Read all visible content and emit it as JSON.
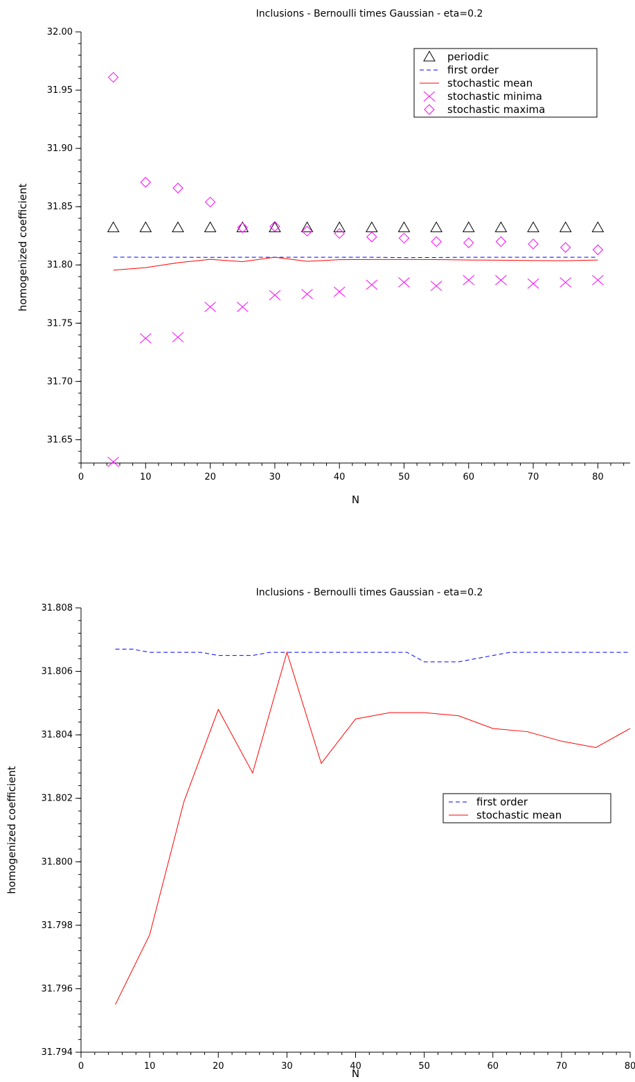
{
  "chart_data": [
    {
      "type": "line",
      "title": "Inclusions - Bernoulli times Gaussian - eta=0.2",
      "xlabel": "N",
      "ylabel": "homogenized coefficient",
      "xlim": [
        0,
        85
      ],
      "ylim": [
        31.63,
        32.0
      ],
      "xticks": [
        "0",
        "10",
        "20",
        "30",
        "40",
        "50",
        "60",
        "70",
        "80"
      ],
      "yticks": [
        "31.65",
        "31.70",
        "31.75",
        "31.80",
        "31.85",
        "31.90",
        "31.95",
        "32.00"
      ],
      "legend_position": "top-right",
      "series": [
        {
          "name": "periodic",
          "style": "triangle-markers",
          "color": "#000000",
          "x": [
            5,
            10,
            15,
            20,
            25,
            30,
            35,
            40,
            45,
            50,
            55,
            60,
            65,
            70,
            75,
            80
          ],
          "y": [
            31.832,
            31.832,
            31.832,
            31.832,
            31.832,
            31.832,
            31.832,
            31.832,
            31.832,
            31.832,
            31.832,
            31.832,
            31.832,
            31.832,
            31.832,
            31.832
          ]
        },
        {
          "name": "first order",
          "style": "dashed-line",
          "color": "#0000ff",
          "x": [
            5,
            10,
            15,
            20,
            25,
            30,
            35,
            40,
            45,
            50,
            55,
            60,
            65,
            70,
            75,
            80
          ],
          "y": [
            31.8067,
            31.8066,
            31.8066,
            31.8065,
            31.8066,
            31.8066,
            31.8066,
            31.8066,
            31.8066,
            31.8063,
            31.8064,
            31.8066,
            31.8066,
            31.8066,
            31.8066,
            31.8066
          ]
        },
        {
          "name": "stochastic mean",
          "style": "solid-line",
          "color": "#ff0000",
          "x": [
            5,
            10,
            15,
            20,
            25,
            30,
            35,
            40,
            45,
            50,
            55,
            60,
            65,
            70,
            75,
            80
          ],
          "y": [
            31.7955,
            31.7977,
            31.8019,
            31.8048,
            31.8028,
            31.8066,
            31.8031,
            31.8045,
            31.8047,
            31.8047,
            31.8046,
            31.8042,
            31.8041,
            31.8038,
            31.8036,
            31.8042
          ]
        },
        {
          "name": "stochastic minima",
          "style": "x-markers",
          "color": "#ff00ff",
          "x": [
            5,
            10,
            15,
            20,
            25,
            30,
            35,
            40,
            45,
            50,
            55,
            60,
            65,
            70,
            75,
            80
          ],
          "y": [
            31.631,
            31.737,
            31.738,
            31.764,
            31.764,
            31.774,
            31.775,
            31.777,
            31.783,
            31.785,
            31.782,
            31.787,
            31.787,
            31.784,
            31.785,
            31.787
          ]
        },
        {
          "name": "stochastic maxima",
          "style": "diamond-markers",
          "color": "#ff00ff",
          "x": [
            5,
            10,
            15,
            20,
            25,
            30,
            35,
            40,
            45,
            50,
            55,
            60,
            65,
            70,
            75,
            80
          ],
          "y": [
            31.961,
            31.871,
            31.866,
            31.854,
            31.832,
            31.833,
            31.829,
            31.827,
            31.824,
            31.823,
            31.82,
            31.819,
            31.82,
            31.818,
            31.815,
            31.813
          ]
        }
      ]
    },
    {
      "type": "line",
      "title": "Inclusions - Bernoulli times Gaussian - eta=0.2",
      "xlabel": "N",
      "ylabel": "homogenized coefficient",
      "xlim": [
        0,
        80
      ],
      "ylim": [
        31.794,
        31.808
      ],
      "xticks": [
        "0",
        "10",
        "20",
        "30",
        "40",
        "50",
        "60",
        "70",
        "80"
      ],
      "yticks": [
        "31.794",
        "31.796",
        "31.798",
        "31.800",
        "31.802",
        "31.804",
        "31.806",
        "31.808"
      ],
      "legend_position": "center-right",
      "series": [
        {
          "name": "first order",
          "style": "dashed-line",
          "color": "#0000ff",
          "x": [
            5,
            7.5,
            10,
            12.5,
            15,
            17.5,
            20,
            22.5,
            25,
            27.5,
            30,
            32.5,
            35,
            37.5,
            40,
            42.5,
            45,
            47.5,
            50,
            52.5,
            55,
            57.5,
            60,
            62.5,
            65,
            67.5,
            70,
            72.5,
            75,
            77.5,
            80
          ],
          "y": [
            31.8067,
            31.8067,
            31.8066,
            31.8066,
            31.8066,
            31.8066,
            31.8065,
            31.8065,
            31.8065,
            31.8066,
            31.8066,
            31.8066,
            31.8066,
            31.8066,
            31.8066,
            31.8066,
            31.8066,
            31.8066,
            31.8063,
            31.8063,
            31.8063,
            31.8064,
            31.8065,
            31.8066,
            31.8066,
            31.8066,
            31.8066,
            31.8066,
            31.8066,
            31.8066,
            31.8066
          ]
        },
        {
          "name": "stochastic mean",
          "style": "solid-line",
          "color": "#ff0000",
          "x": [
            5,
            10,
            15,
            20,
            25,
            30,
            35,
            40,
            45,
            50,
            55,
            60,
            65,
            70,
            75,
            80
          ],
          "y": [
            31.7955,
            31.7977,
            31.8019,
            31.8048,
            31.8028,
            31.8066,
            31.8031,
            31.8045,
            31.8047,
            31.8047,
            31.8046,
            31.8042,
            31.8041,
            31.8038,
            31.8036,
            31.8042
          ]
        }
      ]
    }
  ]
}
